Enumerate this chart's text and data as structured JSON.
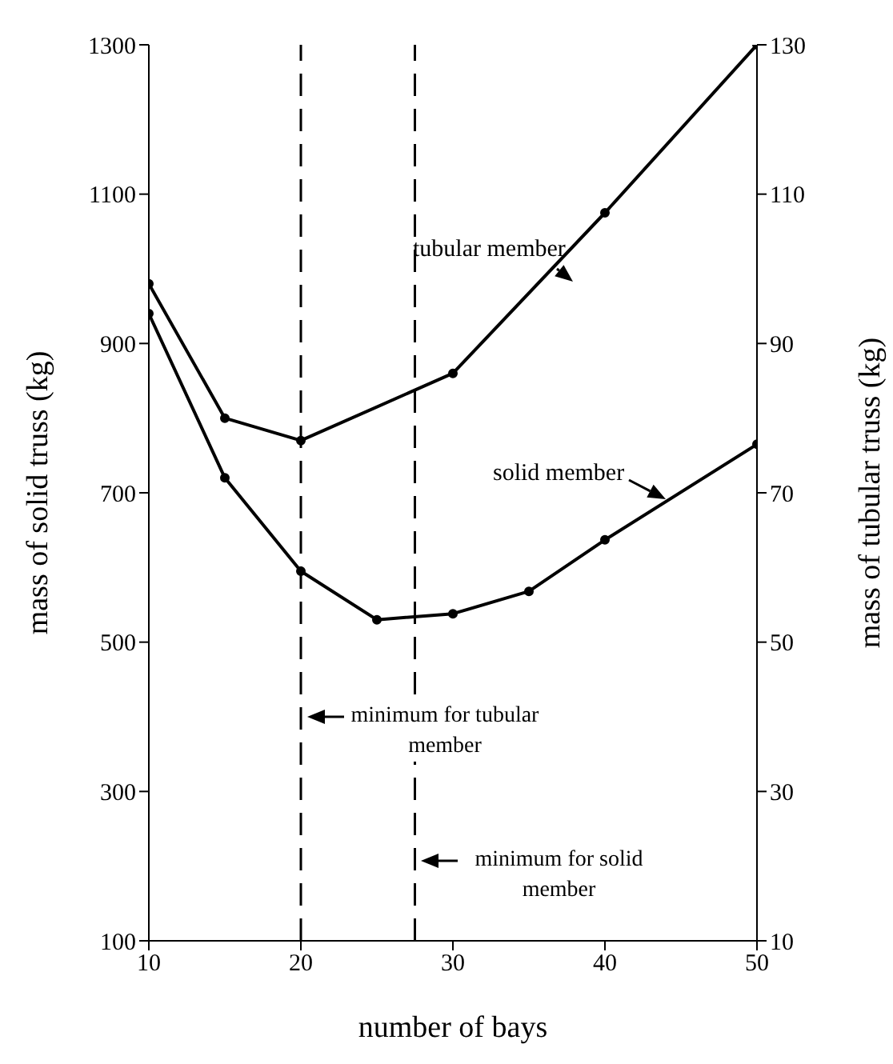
{
  "chart_data": {
    "type": "line",
    "xlabel": "number of bays",
    "ylabel": "mass of solid truss (kg)",
    "y2label": "mass of tubular truss (kg)",
    "series": [
      {
        "name": "tubular member",
        "color": "#000000",
        "axis": "y2",
        "x": [
          10,
          15,
          20,
          30,
          40,
          50
        ],
        "values": [
          98,
          80,
          77,
          86,
          107.5,
          130
        ]
      },
      {
        "name": "solid member",
        "color": "#000000",
        "x": [
          10,
          15,
          20,
          25,
          30,
          35,
          40,
          50
        ],
        "values": [
          940,
          720,
          595,
          530,
          538,
          568,
          637,
          765
        ]
      }
    ],
    "xlim": [
      10,
      50
    ],
    "xticks": [
      10,
      20,
      30,
      40,
      50
    ],
    "ylim": [
      100,
      1300
    ],
    "yticks": [
      100,
      300,
      500,
      700,
      900,
      1100,
      1300
    ],
    "y2lim": [
      10,
      130
    ],
    "y2ticks": [
      10,
      30,
      50,
      70,
      90,
      110,
      130
    ],
    "ref_lines": [
      {
        "axis": "x",
        "value": 20,
        "label": "minimum for tubular member",
        "line_style": "dashed"
      },
      {
        "axis": "x",
        "value": 27.5,
        "label": "minimum for solid member",
        "line_style": "dashed"
      }
    ],
    "marker": "circle",
    "line_style": "solid",
    "grid": false
  }
}
